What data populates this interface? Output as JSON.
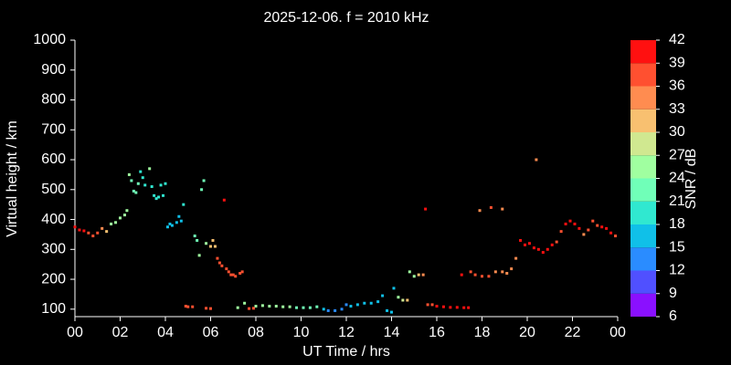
{
  "chart_data": {
    "type": "scatter",
    "title": "2025-12-06. f = 2010 kHz",
    "xlabel": "UT Time / hrs",
    "ylabel": "Virtual height / km",
    "xlim": [
      0,
      24
    ],
    "xticks": [
      {
        "value": 0,
        "label": "00"
      },
      {
        "value": 2,
        "label": "02"
      },
      {
        "value": 4,
        "label": "04"
      },
      {
        "value": 6,
        "label": "06"
      },
      {
        "value": 8,
        "label": "08"
      },
      10,
      12,
      14,
      16,
      18,
      20,
      22,
      {
        "value": 24,
        "label": "00"
      }
    ],
    "ylim": [
      75,
      1000
    ],
    "yticks": [
      100,
      200,
      300,
      400,
      500,
      600,
      700,
      800,
      900,
      1000
    ],
    "colorbar": {
      "label": "SNR / dB",
      "ticks": [
        6,
        9,
        12,
        15,
        18,
        21,
        24,
        27,
        30,
        33,
        36,
        39,
        42
      ],
      "colors": [
        "#8a10ff",
        "#5050ff",
        "#2a8cff",
        "#10c0e8",
        "#30e8d0",
        "#70ffb8",
        "#a0ffa0",
        "#d0e890",
        "#f8c070",
        "#ff8c50",
        "#ff5030",
        "#ff1010"
      ]
    },
    "x": [
      0.0,
      0.2,
      0.4,
      0.6,
      0.8,
      1.0,
      1.2,
      1.4,
      1.6,
      1.8,
      2.0,
      2.2,
      2.3,
      2.4,
      2.5,
      2.6,
      2.7,
      2.8,
      2.9,
      3.0,
      3.1,
      3.3,
      3.4,
      3.5,
      3.6,
      3.7,
      3.8,
      3.9,
      4.0,
      4.1,
      4.2,
      4.3,
      4.5,
      4.6,
      4.7,
      4.8,
      5.3,
      5.4,
      5.5,
      5.6,
      5.7,
      5.8,
      6.0,
      6.1,
      6.2,
      6.3,
      6.4,
      6.5,
      6.6,
      6.7,
      6.8,
      6.9,
      7.0,
      7.1,
      7.3,
      7.4,
      4.9,
      5.0,
      5.2,
      5.8,
      6.0,
      7.2,
      7.5,
      7.7,
      7.9,
      8.0,
      8.3,
      8.6,
      8.9,
      9.2,
      9.5,
      9.8,
      10.1,
      10.4,
      10.7,
      11.0,
      11.2,
      11.5,
      11.8,
      12.0,
      12.2,
      12.5,
      12.8,
      13.1,
      13.4,
      13.6,
      13.8,
      14.0,
      14.1,
      14.3,
      14.5,
      14.7,
      14.8,
      15.0,
      15.2,
      15.4,
      15.5,
      15.6,
      15.8,
      16.0,
      16.3,
      16.6,
      16.9,
      17.2,
      17.4,
      17.1,
      17.5,
      17.7,
      18.0,
      18.3,
      18.6,
      18.9,
      19.1,
      19.3,
      19.5,
      17.9,
      18.4,
      18.9,
      19.7,
      19.9,
      20.1,
      20.3,
      20.5,
      20.7,
      20.9,
      21.1,
      21.3,
      21.5,
      21.7,
      21.9,
      22.1,
      22.3,
      22.5,
      22.7,
      22.9,
      23.1,
      23.3,
      23.5,
      23.7,
      23.9,
      20.4
    ],
    "y": [
      375,
      365,
      362,
      355,
      345,
      355,
      370,
      360,
      385,
      390,
      405,
      415,
      430,
      550,
      530,
      495,
      490,
      520,
      560,
      540,
      515,
      570,
      510,
      480,
      470,
      475,
      515,
      480,
      520,
      375,
      385,
      380,
      390,
      410,
      395,
      450,
      345,
      330,
      280,
      500,
      530,
      320,
      310,
      330,
      310,
      270,
      255,
      245,
      465,
      235,
      225,
      215,
      215,
      210,
      220,
      225,
      110,
      108,
      108,
      103,
      102,
      105,
      120,
      102,
      103,
      110,
      112,
      110,
      110,
      108,
      108,
      105,
      105,
      105,
      108,
      100,
      95,
      95,
      100,
      115,
      110,
      115,
      120,
      120,
      125,
      145,
      95,
      90,
      170,
      140,
      130,
      130,
      225,
      210,
      215,
      215,
      435,
      115,
      115,
      110,
      108,
      106,
      106,
      105,
      105,
      215,
      225,
      215,
      210,
      210,
      225,
      225,
      220,
      235,
      270,
      430,
      440,
      435,
      330,
      315,
      320,
      305,
      300,
      290,
      300,
      315,
      325,
      360,
      385,
      395,
      385,
      370,
      350,
      365,
      395,
      380,
      375,
      370,
      355,
      345,
      600
    ],
    "snr": [
      39,
      39,
      39,
      36,
      36,
      36,
      33,
      30,
      24,
      24,
      24,
      24,
      24,
      24,
      21,
      21,
      21,
      21,
      18,
      18,
      18,
      24,
      18,
      18,
      18,
      18,
      18,
      18,
      18,
      15,
      15,
      15,
      15,
      15,
      15,
      18,
      21,
      21,
      24,
      21,
      21,
      24,
      30,
      30,
      30,
      36,
      36,
      36,
      39,
      36,
      36,
      36,
      36,
      36,
      36,
      36,
      36,
      36,
      36,
      36,
      36,
      24,
      24,
      36,
      36,
      24,
      24,
      24,
      24,
      24,
      24,
      21,
      21,
      21,
      21,
      15,
      12,
      12,
      12,
      12,
      15,
      15,
      15,
      15,
      15,
      15,
      15,
      15,
      15,
      24,
      27,
      30,
      24,
      24,
      30,
      33,
      39,
      36,
      36,
      39,
      39,
      39,
      39,
      39,
      39,
      39,
      36,
      36,
      36,
      36,
      33,
      33,
      33,
      33,
      33,
      33,
      36,
      33,
      39,
      39,
      39,
      39,
      39,
      39,
      39,
      39,
      36,
      36,
      39,
      39,
      39,
      39,
      33,
      36,
      36,
      36,
      39,
      39,
      39,
      36,
      33
    ]
  }
}
